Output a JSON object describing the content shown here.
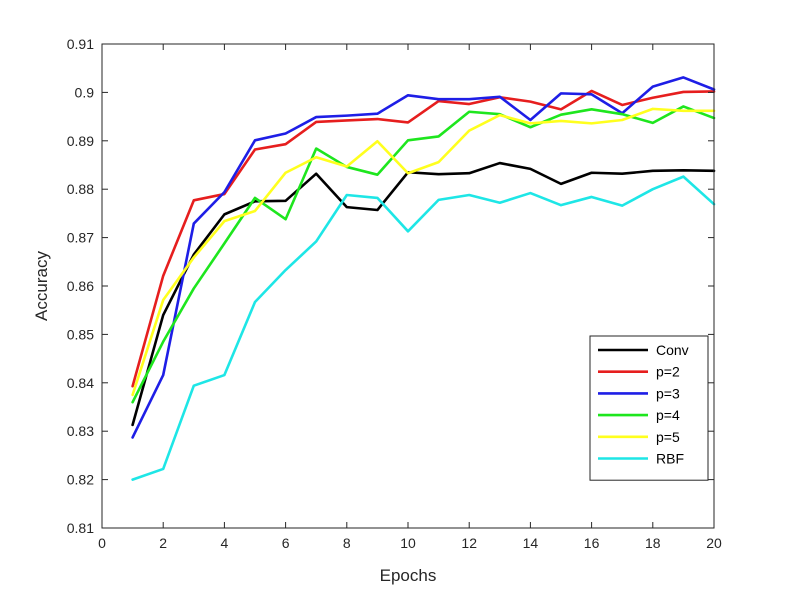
{
  "chart_data": {
    "type": "line",
    "title": "",
    "xlabel": "Epochs",
    "ylabel": "Accuracy",
    "xlim": [
      0,
      20
    ],
    "ylim": [
      0.81,
      0.91
    ],
    "xticks": [
      "0",
      "2",
      "4",
      "6",
      "8",
      "10",
      "12",
      "14",
      "16",
      "18",
      "20"
    ],
    "yticks": [
      "0.81",
      "0.82",
      "0.83",
      "0.84",
      "0.85",
      "0.86",
      "0.87",
      "0.88",
      "0.89",
      "0.9",
      "0.91"
    ],
    "grid": false,
    "legend_position": "lower-right",
    "x": [
      1,
      2,
      3,
      4,
      5,
      6,
      7,
      8,
      9,
      10,
      11,
      12,
      13,
      14,
      15,
      16,
      17,
      18,
      19,
      20
    ],
    "series": [
      {
        "name": "Conv",
        "color": "#000000",
        "values": [
          0.8313,
          0.854,
          0.8665,
          0.8748,
          0.8775,
          0.8776,
          0.8832,
          0.8763,
          0.8757,
          0.8835,
          0.8831,
          0.8833,
          0.8854,
          0.8842,
          0.8811,
          0.8834,
          0.8832,
          0.8838,
          0.8839,
          0.8838
        ]
      },
      {
        "name": "p=2",
        "color": "#e61e1e",
        "values": [
          0.8393,
          0.8621,
          0.8777,
          0.879,
          0.8882,
          0.8893,
          0.8939,
          0.8942,
          0.8945,
          0.8938,
          0.8982,
          0.8976,
          0.899,
          0.8981,
          0.8965,
          0.9003,
          0.8974,
          0.8989,
          0.9001,
          0.9002
        ]
      },
      {
        "name": "p=3",
        "color": "#1e1ee6",
        "values": [
          0.8287,
          0.8416,
          0.8729,
          0.8794,
          0.8901,
          0.8915,
          0.8949,
          0.8952,
          0.8956,
          0.8994,
          0.8986,
          0.8986,
          0.8991,
          0.8943,
          0.8998,
          0.8996,
          0.8957,
          0.9012,
          0.9031,
          0.9006
        ]
      },
      {
        "name": "p=4",
        "color": "#1ee61e",
        "values": [
          0.836,
          0.8485,
          0.8595,
          0.8688,
          0.8782,
          0.8738,
          0.8884,
          0.8846,
          0.883,
          0.8901,
          0.8909,
          0.896,
          0.8955,
          0.8928,
          0.8954,
          0.8965,
          0.8955,
          0.8937,
          0.8971,
          0.8947
        ]
      },
      {
        "name": "p=5",
        "color": "#ffff1e",
        "values": [
          0.8375,
          0.8571,
          0.8659,
          0.8734,
          0.8755,
          0.8834,
          0.8866,
          0.8847,
          0.8899,
          0.8833,
          0.8856,
          0.8921,
          0.8953,
          0.8936,
          0.8941,
          0.8936,
          0.8943,
          0.8966,
          0.8962,
          0.8962
        ]
      },
      {
        "name": "RBF",
        "color": "#1ee6e6",
        "values": [
          0.82,
          0.8222,
          0.8394,
          0.8416,
          0.8567,
          0.8633,
          0.8692,
          0.8788,
          0.8782,
          0.8713,
          0.8778,
          0.8788,
          0.8772,
          0.8792,
          0.8767,
          0.8784,
          0.8766,
          0.88,
          0.8826,
          0.8769
        ]
      }
    ]
  }
}
